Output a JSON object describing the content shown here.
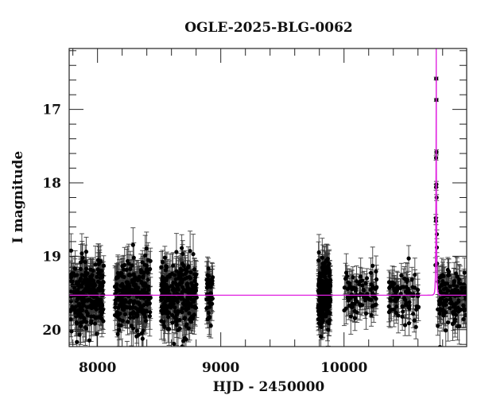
{
  "chart_data": {
    "type": "scatter",
    "title": "OGLE-2025-BLG-0062",
    "xlabel": "HJD - 2450000",
    "ylabel": "I magnitude",
    "xlim": [
      7770,
      10995
    ],
    "ylim": [
      20.23,
      16.17
    ],
    "y_inverted": true,
    "x_ticks_major": [
      8000,
      9000,
      10000
    ],
    "x_tick_labels": [
      "8000",
      "9000",
      "10000"
    ],
    "x_minor_step": 200,
    "y_ticks_major": [
      17,
      18,
      19,
      20
    ],
    "y_tick_labels": [
      "17",
      "18",
      "19",
      "20"
    ],
    "y_minor_step": 0.2,
    "grid": false,
    "legend": null,
    "colors": {
      "points": "#000000",
      "errorbars": "#333333",
      "model": "#e020e0",
      "axes": "#222222"
    },
    "baseline_magnitude": 19.53,
    "model": {
      "name": "microlensing-fit",
      "t0": 10748,
      "tE": 6,
      "u0": 0.045,
      "baseline": 19.53,
      "peak_above_plot": true
    },
    "observing_seasons": [
      {
        "start": 7780,
        "end": 8050,
        "n": 260,
        "scatter": 0.22,
        "err": 0.22
      },
      {
        "start": 8140,
        "end": 8430,
        "n": 260,
        "scatter": 0.22,
        "err": 0.22
      },
      {
        "start": 8515,
        "end": 8805,
        "n": 280,
        "scatter": 0.22,
        "err": 0.22
      },
      {
        "start": 8885,
        "end": 8935,
        "n": 40,
        "scatter": 0.2,
        "err": 0.2
      },
      {
        "start": 9790,
        "end": 9890,
        "n": 220,
        "scatter": 0.23,
        "err": 0.22
      },
      {
        "start": 9995,
        "end": 10265,
        "n": 80,
        "scatter": 0.17,
        "err": 0.2
      },
      {
        "start": 10355,
        "end": 10605,
        "n": 80,
        "scatter": 0.18,
        "err": 0.2
      },
      {
        "start": 10760,
        "end": 10990,
        "n": 130,
        "scatter": 0.18,
        "err": 0.2
      }
    ],
    "peak_points": [
      {
        "x": 10748,
        "y": 16.58,
        "err": 0.02
      },
      {
        "x": 10749,
        "y": 16.87,
        "err": 0.02
      },
      {
        "x": 10750,
        "y": 17.58,
        "err": 0.03
      },
      {
        "x": 10747,
        "y": 17.66,
        "err": 0.03
      },
      {
        "x": 10749,
        "y": 18.02,
        "err": 0.04
      },
      {
        "x": 10747,
        "y": 18.06,
        "err": 0.04
      },
      {
        "x": 10751,
        "y": 18.2,
        "err": 0.04
      },
      {
        "x": 10745,
        "y": 18.48,
        "err": 0.05
      },
      {
        "x": 10746,
        "y": 18.52,
        "err": 0.05
      },
      {
        "x": 10753,
        "y": 18.7,
        "err": 0.06
      },
      {
        "x": 10753,
        "y": 18.88,
        "err": 0.07
      },
      {
        "x": 10742,
        "y": 19.12,
        "err": 0.1
      },
      {
        "x": 10755,
        "y": 19.1,
        "err": 0.1
      }
    ]
  }
}
